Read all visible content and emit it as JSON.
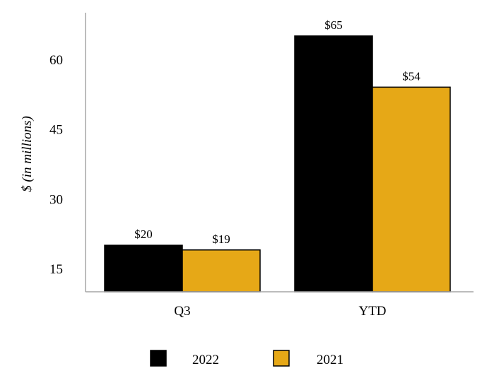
{
  "chart_data": {
    "type": "bar",
    "title": "",
    "xlabel": "",
    "ylabel": "$ (in millions)",
    "categories": [
      "Q3",
      "YTD"
    ],
    "series": [
      {
        "name": "2022",
        "values": [
          20,
          65
        ],
        "labels": [
          "$20",
          "$65"
        ],
        "color": "#000000"
      },
      {
        "name": "2021",
        "values": [
          19,
          54
        ],
        "labels": [
          "$19",
          "$54"
        ],
        "color": "#E6A817"
      }
    ],
    "ylim": [
      10,
      70
    ],
    "yticks": [
      15,
      30,
      45,
      60
    ],
    "grid": false,
    "legend_position": "bottom"
  }
}
